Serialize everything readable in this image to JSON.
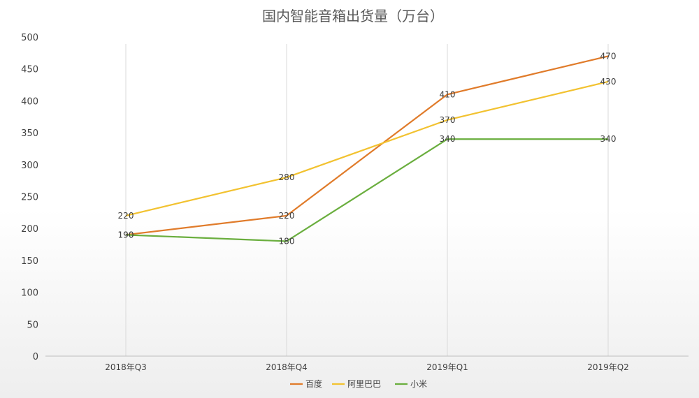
{
  "chart_data": {
    "type": "line",
    "title": "国内智能音箱出货量（万台）",
    "categories": [
      "2018年Q3",
      "2018年Q4",
      "2019年Q1",
      "2019年Q2"
    ],
    "ylim": [
      0,
      500
    ],
    "yticks": [
      0,
      50,
      100,
      150,
      200,
      250,
      300,
      350,
      400,
      450,
      500
    ],
    "grid": "vertical",
    "legend": "bottom",
    "series": [
      {
        "name": "百度",
        "color": "#E07B2A",
        "values": [
          190,
          220,
          410,
          470
        ]
      },
      {
        "name": "阿里巴巴",
        "color": "#F2C230",
        "values": [
          220,
          280,
          370,
          430
        ]
      },
      {
        "name": "小米",
        "color": "#6AAE3E",
        "values": [
          190,
          180,
          340,
          340
        ]
      }
    ]
  }
}
